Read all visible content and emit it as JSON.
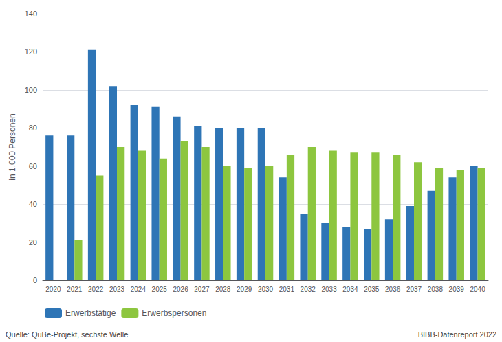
{
  "chart_data": {
    "type": "bar",
    "y_label": "in 1.000 Personen",
    "categories": [
      "2020",
      "2021",
      "2022",
      "2023",
      "2024",
      "2025",
      "2026",
      "2027",
      "2028",
      "2029",
      "2030",
      "2031",
      "2032",
      "2033",
      "2034",
      "2035",
      "2036",
      "2037",
      "2038",
      "2039",
      "2040"
    ],
    "series": [
      {
        "name": "Erwerbstätige",
        "color": "#2e75b6",
        "values": [
          76,
          76,
          121,
          102,
          92,
          91,
          86,
          81,
          80,
          80,
          80,
          54,
          35,
          30,
          28,
          27,
          32,
          39,
          47,
          54,
          60
        ]
      },
      {
        "name": "Erwerbspersonen",
        "color": "#8dc63f",
        "values": [
          0,
          21,
          55,
          70,
          68,
          64,
          73,
          70,
          60,
          59,
          60,
          66,
          70,
          68,
          67,
          67,
          66,
          62,
          59,
          58,
          59
        ]
      }
    ],
    "ylim": [
      0,
      140
    ],
    "yticks": [
      0,
      20,
      40,
      60,
      80,
      100,
      120,
      140
    ],
    "grid": true,
    "legend": "lower left",
    "annotations": [
      "Quelle: QuBe-Projekt, sechste Welle",
      "BIBB-Datenreport 2022"
    ]
  }
}
